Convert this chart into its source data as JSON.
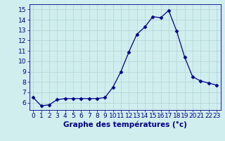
{
  "x": [
    0,
    1,
    2,
    3,
    4,
    5,
    6,
    7,
    8,
    9,
    10,
    11,
    12,
    13,
    14,
    15,
    16,
    17,
    18,
    19,
    20,
    21,
    22,
    23
  ],
  "y": [
    6.5,
    5.7,
    5.8,
    6.3,
    6.4,
    6.4,
    6.4,
    6.4,
    6.4,
    6.5,
    7.5,
    9.0,
    10.9,
    12.6,
    13.3,
    14.3,
    14.2,
    14.9,
    12.9,
    10.4,
    8.5,
    8.1,
    7.9,
    7.7
  ],
  "line_color": "#00008B",
  "marker": "D",
  "marker_size": 2.5,
  "bg_color": "#D0EEEE",
  "grid_color": "#B0D4D4",
  "xlabel": "Graphe des températures (°c)",
  "ylabel_ticks": [
    6,
    7,
    8,
    9,
    10,
    11,
    12,
    13,
    14,
    15
  ],
  "ylim": [
    5.3,
    15.5
  ],
  "xlim": [
    -0.5,
    23.5
  ],
  "axis_color": "#00008B",
  "tick_fontsize": 6.5,
  "xlabel_fontsize": 7.5
}
